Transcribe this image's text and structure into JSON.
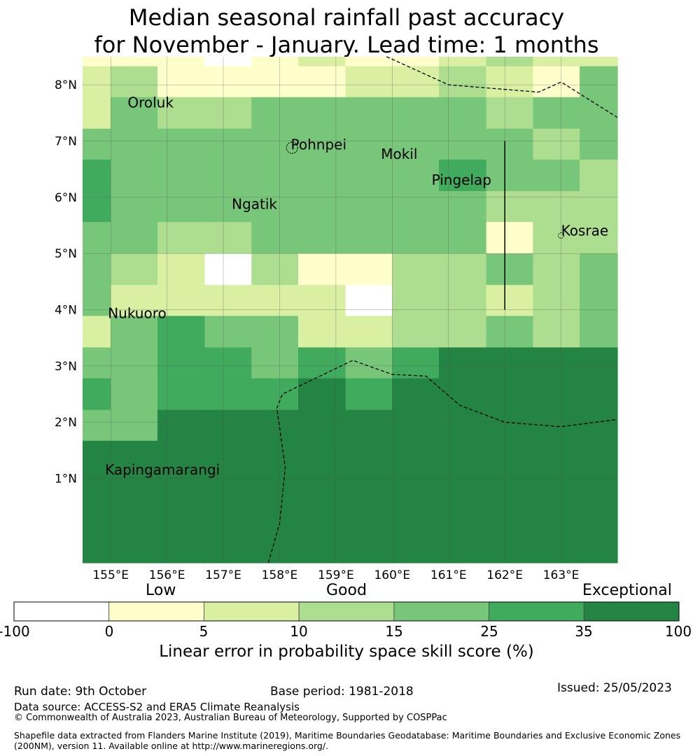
{
  "title": {
    "line1": "Median seasonal rainfall past accuracy",
    "line2": "for November - January. Lead time: 1 months"
  },
  "map": {
    "lon_range": [
      154.5,
      164.0
    ],
    "lat_range": [
      -0.5,
      8.5
    ],
    "x_ticks": [
      {
        "value": 155,
        "label": "155°E"
      },
      {
        "value": 156,
        "label": "156°E"
      },
      {
        "value": 157,
        "label": "157°E"
      },
      {
        "value": 158,
        "label": "158°E"
      },
      {
        "value": 159,
        "label": "159°E"
      },
      {
        "value": 160,
        "label": "160°E"
      },
      {
        "value": 161,
        "label": "161°E"
      },
      {
        "value": 162,
        "label": "162°E"
      },
      {
        "value": 163,
        "label": "163°E"
      }
    ],
    "y_ticks": [
      {
        "value": 1,
        "label": "1°N"
      },
      {
        "value": 2,
        "label": "2°N"
      },
      {
        "value": 3,
        "label": "3°N"
      },
      {
        "value": 4,
        "label": "4°N"
      },
      {
        "value": 5,
        "label": "5°N"
      },
      {
        "value": 6,
        "label": "6°N"
      },
      {
        "value": 7,
        "label": "7°N"
      },
      {
        "value": 8,
        "label": "8°N"
      }
    ],
    "grid_lon_edges": [
      154.5,
      155.0,
      155.83,
      156.67,
      157.5,
      158.33,
      159.17,
      160.0,
      160.83,
      161.67,
      162.5,
      163.33,
      164.0
    ],
    "grid_lat_edges": [
      8.5,
      8.33,
      7.78,
      7.22,
      6.67,
      6.11,
      5.56,
      5.0,
      4.44,
      3.89,
      3.33,
      2.78,
      2.22,
      1.67,
      -0.5
    ],
    "skill_classes": [
      [
        1,
        1,
        1,
        0,
        1,
        2,
        1,
        1,
        2,
        3,
        2,
        2
      ],
      [
        2,
        3,
        1,
        1,
        1,
        1,
        2,
        2,
        3,
        2,
        1,
        4
      ],
      [
        2,
        4,
        3,
        3,
        4,
        4,
        4,
        4,
        4,
        3,
        4,
        4
      ],
      [
        4,
        4,
        4,
        4,
        4,
        4,
        4,
        4,
        4,
        4,
        3,
        4
      ],
      [
        5,
        4,
        4,
        4,
        4,
        4,
        4,
        4,
        5,
        4,
        4,
        3
      ],
      [
        5,
        4,
        4,
        4,
        4,
        4,
        4,
        4,
        4,
        3,
        3,
        3
      ],
      [
        4,
        4,
        3,
        3,
        4,
        4,
        4,
        4,
        4,
        1,
        3,
        3
      ],
      [
        4,
        3,
        2,
        -1,
        3,
        1,
        1,
        3,
        3,
        4,
        3,
        4
      ],
      [
        4,
        2,
        2,
        2,
        2,
        2,
        -1,
        3,
        3,
        2,
        3,
        4
      ],
      [
        2,
        4,
        5,
        4,
        4,
        2,
        2,
        3,
        3,
        4,
        3,
        4
      ],
      [
        4,
        4,
        5,
        5,
        4,
        5,
        4,
        5,
        6,
        6,
        6,
        6
      ],
      [
        5,
        4,
        5,
        5,
        5,
        6,
        5,
        6,
        6,
        6,
        6,
        6
      ],
      [
        4,
        4,
        6,
        6,
        6,
        6,
        6,
        6,
        6,
        6,
        6,
        6
      ],
      [
        6,
        6,
        6,
        6,
        6,
        6,
        6,
        6,
        6,
        6,
        6,
        6
      ]
    ],
    "places": [
      {
        "name": "Oroluk",
        "lon": 155.3,
        "lat": 7.6
      },
      {
        "name": "Pohnpei",
        "lon": 158.2,
        "lat": 6.85
      },
      {
        "name": "Mokil",
        "lon": 159.8,
        "lat": 6.68
      },
      {
        "name": "Pingelap",
        "lon": 160.7,
        "lat": 6.22
      },
      {
        "name": "Ngatik",
        "lon": 157.15,
        "lat": 5.79
      },
      {
        "name": "Kosrae",
        "lon": 163.0,
        "lat": 5.32
      },
      {
        "name": "Nukuoro",
        "lon": 154.95,
        "lat": 3.85
      },
      {
        "name": "Kapingamarangi",
        "lon": 154.9,
        "lat": 1.07
      }
    ],
    "boundary_dashed_1": [
      [
        159.9,
        8.5
      ],
      [
        161.0,
        8.0
      ],
      [
        162.6,
        7.87
      ],
      [
        163.0,
        8.05
      ],
      [
        164.0,
        7.42
      ]
    ],
    "boundary_dashed_2": [
      [
        157.8,
        -0.5
      ],
      [
        158.0,
        0.2
      ],
      [
        158.1,
        1.2
      ],
      [
        157.95,
        2.25
      ],
      [
        158.05,
        2.5
      ],
      [
        159.3,
        3.1
      ],
      [
        160.0,
        2.85
      ],
      [
        160.6,
        2.82
      ],
      [
        161.2,
        2.3
      ],
      [
        162.0,
        2.0
      ],
      [
        163.0,
        1.92
      ],
      [
        164.0,
        2.05
      ]
    ],
    "boundary_solid": [
      [
        162.0,
        7.0
      ],
      [
        162.0,
        4.0
      ]
    ]
  },
  "colorbar": {
    "colors": [
      "#ffffff",
      "#ffffcc",
      "#d9f0a3",
      "#addd8e",
      "#78c679",
      "#41ab5d",
      "#238443"
    ],
    "bins": [
      -100,
      0,
      5,
      10,
      15,
      25,
      35,
      100
    ],
    "tick_labels": [
      "-100",
      "0",
      "5",
      "10",
      "15",
      "25",
      "35",
      "100"
    ],
    "category_low": "Low",
    "category_good": "Good",
    "category_exceptional": "Exceptional",
    "axis_title": "Linear error in probability space skill score (%)"
  },
  "footer": {
    "run_date": "Run date: 9th October",
    "base_period": "Base period: 1981-2018",
    "issued": "Issued: 25/05/2023",
    "data_source": "Data source: ACCESS-S2 and ERA5 Climate Reanalysis",
    "copyright": "© Commonwealth of Australia 2023, Australian Bureau of Meteorology, Supported by COSPPac",
    "shapefile_line1": "Shapefile data extracted from Flanders Marine Institute (2019), Maritime Boundaries Geodatabase: Maritime Boundaries and Exclusive Economic Zones",
    "shapefile_line2": "(200NM), version 11. Available online at http://www.marineregions.org/."
  }
}
